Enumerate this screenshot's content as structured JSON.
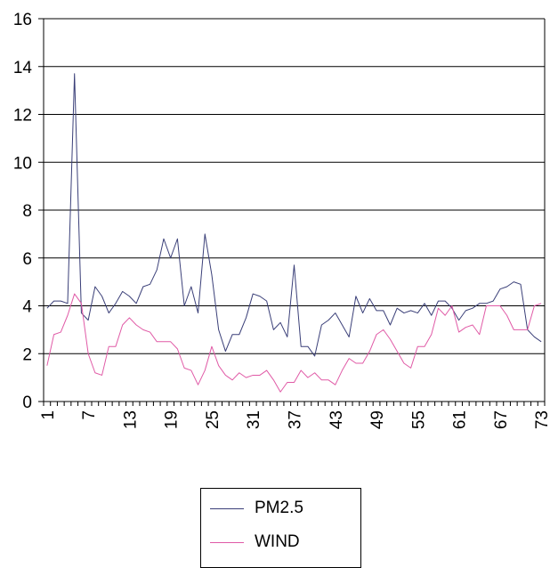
{
  "chart_data": {
    "type": "line",
    "x": [
      1,
      2,
      3,
      4,
      5,
      6,
      7,
      8,
      9,
      10,
      11,
      12,
      13,
      14,
      15,
      16,
      17,
      18,
      19,
      20,
      21,
      22,
      23,
      24,
      25,
      26,
      27,
      28,
      29,
      30,
      31,
      32,
      33,
      34,
      35,
      36,
      37,
      38,
      39,
      40,
      41,
      42,
      43,
      44,
      45,
      46,
      47,
      48,
      49,
      50,
      51,
      52,
      53,
      54,
      55,
      56,
      57,
      58,
      59,
      60,
      61,
      62,
      63,
      64,
      65,
      66,
      67,
      68,
      69,
      70,
      71,
      72,
      73
    ],
    "xticks": [
      "1",
      "7",
      "13",
      "19",
      "25",
      "31",
      "37",
      "43",
      "49",
      "55",
      "61",
      "67",
      "73"
    ],
    "yticks": [
      "0",
      "2",
      "4",
      "6",
      "8",
      "10",
      "12",
      "14",
      "16"
    ],
    "ylim": [
      0,
      16
    ],
    "grid": true,
    "legend": "bottom",
    "series": [
      {
        "name": "PM2.5",
        "color": "#3a3f78",
        "values": [
          3.9,
          4.2,
          4.2,
          4.1,
          13.7,
          3.7,
          3.4,
          4.8,
          4.4,
          3.7,
          4.1,
          4.6,
          4.4,
          4.1,
          4.8,
          4.9,
          5.5,
          6.8,
          6.0,
          6.8,
          4.0,
          4.8,
          3.7,
          7.0,
          5.3,
          3.0,
          2.1,
          2.8,
          2.8,
          3.5,
          4.5,
          4.4,
          4.2,
          3.0,
          3.3,
          2.7,
          5.7,
          2.3,
          2.3,
          1.9,
          3.2,
          3.4,
          3.7,
          3.2,
          2.7,
          4.4,
          3.7,
          4.3,
          3.8,
          3.8,
          3.2,
          3.9,
          3.7,
          3.8,
          3.7,
          4.1,
          3.6,
          4.2,
          4.2,
          3.9,
          3.4,
          3.8,
          3.9,
          4.1,
          4.1,
          4.2,
          4.7,
          4.8,
          5.0,
          4.9,
          3.0,
          2.7,
          2.5
        ]
      },
      {
        "name": "WIND",
        "color": "#e05aa6",
        "values": [
          1.5,
          2.8,
          2.9,
          3.6,
          4.5,
          4.1,
          2.0,
          1.2,
          1.1,
          2.3,
          2.3,
          3.2,
          3.5,
          3.2,
          3.0,
          2.9,
          2.5,
          2.5,
          2.5,
          2.2,
          1.4,
          1.3,
          0.7,
          1.3,
          2.3,
          1.5,
          1.1,
          0.9,
          1.2,
          1.0,
          1.1,
          1.1,
          1.3,
          0.9,
          0.4,
          0.8,
          0.8,
          1.3,
          1.0,
          1.2,
          0.9,
          0.9,
          0.7,
          1.3,
          1.8,
          1.6,
          1.6,
          2.1,
          2.8,
          3.0,
          2.6,
          2.1,
          1.6,
          1.4,
          2.3,
          2.3,
          2.8,
          3.9,
          3.6,
          4.0,
          2.9,
          3.1,
          3.2,
          2.8,
          4.0,
          4.0,
          4.0,
          3.6,
          3.0,
          3.0,
          3.0,
          4.0,
          4.1
        ]
      }
    ]
  }
}
